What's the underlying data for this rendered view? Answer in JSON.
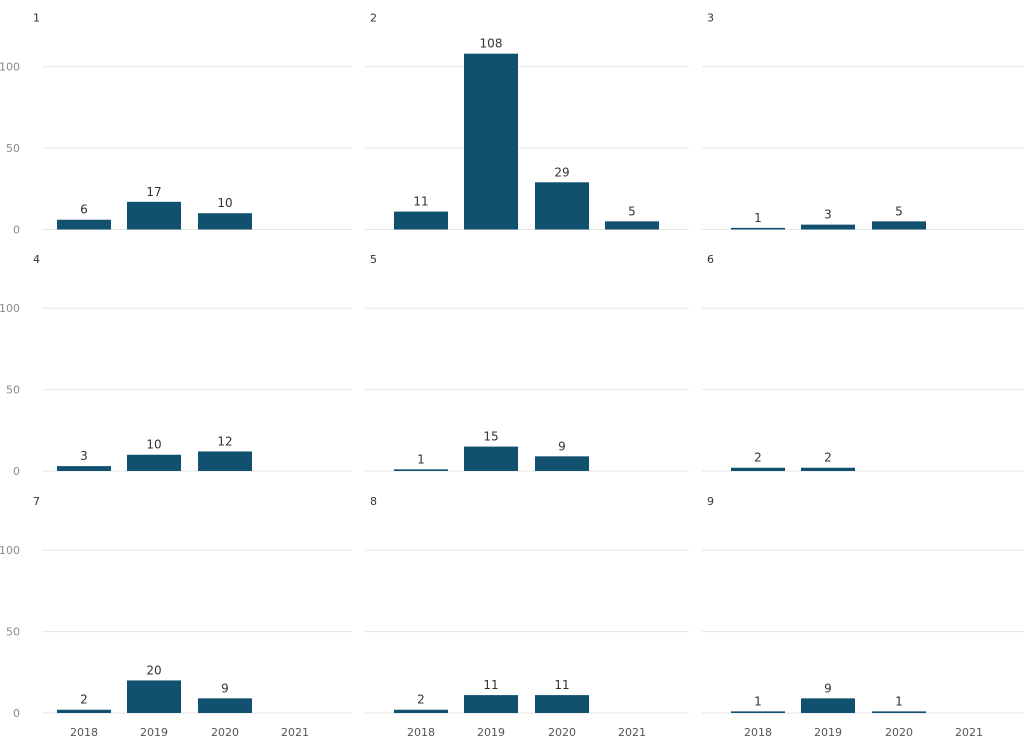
{
  "chart_data": {
    "type": "bar",
    "layout": "small-multiples",
    "colors": {
      "bar": "#12506f",
      "gridline": "#e6e6e6",
      "axis_text": "#8a8a8a",
      "x_tick_text": "#555555",
      "label_text": "#333333"
    },
    "y_ticks": [
      0,
      50,
      100
    ],
    "ylim": [
      0,
      110
    ],
    "x_ticks": [
      "2018",
      "2019",
      "2020",
      "2021"
    ],
    "panels": [
      {
        "title": "1",
        "categories": [
          "2018",
          "2019",
          "2020",
          "2021"
        ],
        "values": [
          6,
          17,
          10,
          null
        ]
      },
      {
        "title": "2",
        "categories": [
          "2018",
          "2019",
          "2020",
          "2021"
        ],
        "values": [
          11,
          108,
          29,
          5
        ]
      },
      {
        "title": "3",
        "categories": [
          "2018",
          "2019",
          "2020",
          "2021"
        ],
        "values": [
          1,
          3,
          5,
          null
        ]
      },
      {
        "title": "4",
        "categories": [
          "2018",
          "2019",
          "2020",
          "2021"
        ],
        "values": [
          3,
          10,
          12,
          null
        ]
      },
      {
        "title": "5",
        "categories": [
          "2018",
          "2019",
          "2020",
          "2021"
        ],
        "values": [
          1,
          15,
          9,
          null
        ]
      },
      {
        "title": "6",
        "categories": [
          "2018",
          "2019",
          "2020",
          "2021"
        ],
        "values": [
          2,
          2,
          null,
          null
        ]
      },
      {
        "title": "7",
        "categories": [
          "2018",
          "2019",
          "2020",
          "2021"
        ],
        "values": [
          2,
          20,
          9,
          null
        ]
      },
      {
        "title": "8",
        "categories": [
          "2018",
          "2019",
          "2020",
          "2021"
        ],
        "values": [
          2,
          11,
          11,
          null
        ]
      },
      {
        "title": "9",
        "categories": [
          "2018",
          "2019",
          "2020",
          "2021"
        ],
        "values": [
          1,
          9,
          1,
          null
        ]
      }
    ]
  }
}
